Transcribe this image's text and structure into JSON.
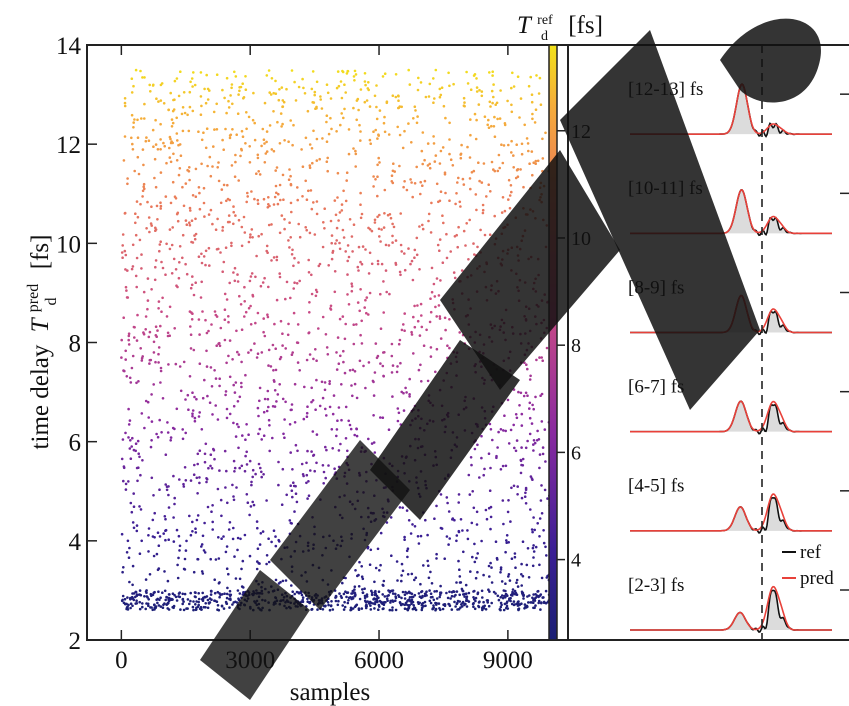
{
  "chart_data": [
    {
      "type": "scatter",
      "xlabel": "samples",
      "ylabel_text": "time delay",
      "ylabel_symbol": "T",
      "ylabel_sub": "d",
      "ylabel_sup": "pred",
      "ylabel_unit": "[fs]",
      "xlim": [
        -800,
        10400
      ],
      "ylim": [
        2,
        14
      ],
      "x_ticks": [
        0,
        3000,
        6000,
        9000
      ],
      "y_ticks": [
        2,
        4,
        6,
        8,
        10,
        12,
        14
      ],
      "x_tick_labels": [
        "0",
        "3000",
        "6000",
        "9000"
      ],
      "y_tick_labels": [
        "2",
        "4",
        "6",
        "8",
        "10",
        "12",
        "14"
      ],
      "n_samples": 10000,
      "x_range": [
        0,
        10000
      ],
      "y_range": [
        2.7,
        13.5
      ],
      "dense_band": [
        2.6,
        3.0
      ],
      "colormap": "plasma",
      "colorbar": {
        "label_symbol": "T",
        "label_sub": "d",
        "label_sup": "ref",
        "label_unit": "[fs]",
        "range": [
          2.5,
          13.6
        ],
        "ticks": [
          4,
          6,
          8,
          10,
          12
        ],
        "tick_labels": [
          "4",
          "6",
          "8",
          "10",
          "12"
        ]
      }
    },
    {
      "type": "line",
      "panels": [
        {
          "label": "[12-13] fs",
          "center": 12.5
        },
        {
          "label": "[10-11] fs",
          "center": 10.5
        },
        {
          "label": "[8-9] fs",
          "center": 8.5
        },
        {
          "label": "[6-7] fs",
          "center": 6.5
        },
        {
          "label": "[4-5] fs",
          "center": 4.5
        },
        {
          "label": "[2-3] fs",
          "center": 2.5
        }
      ],
      "series": [
        {
          "name": "ref",
          "color": "#111111"
        },
        {
          "name": "pred",
          "color": "#e8413a"
        }
      ],
      "fill_color": "#dcdcdc"
    }
  ]
}
